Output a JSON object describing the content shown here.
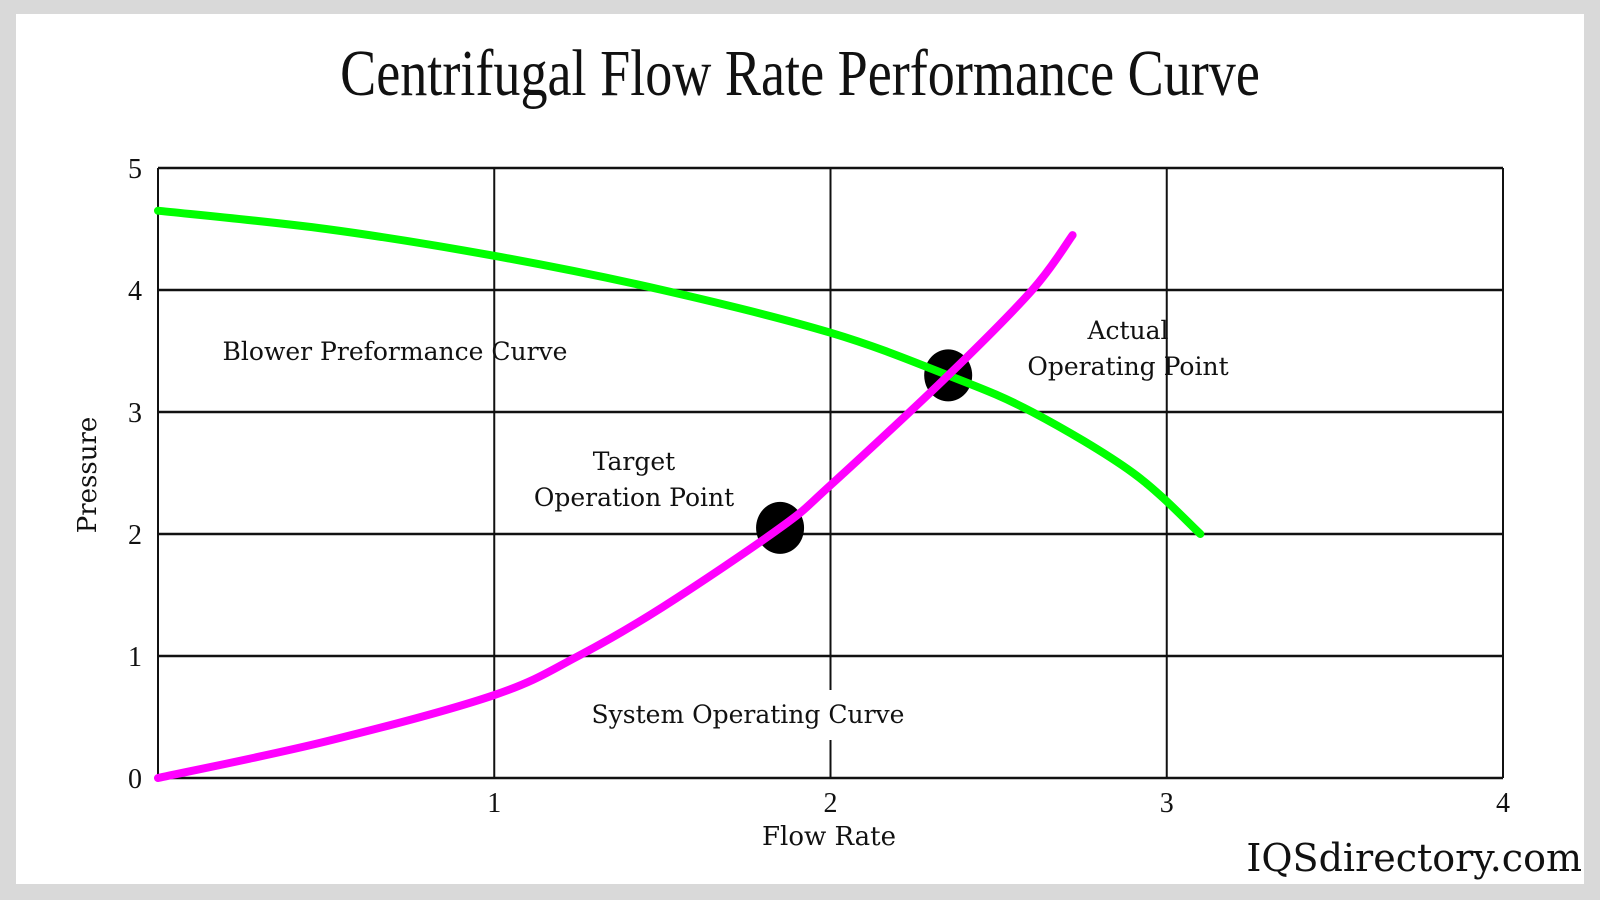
{
  "chart_data": {
    "type": "line",
    "title": "Centrifugal Flow Rate Performance Curve",
    "xlabel": "Flow Rate",
    "ylabel": "Pressure",
    "xlim": [
      0,
      4
    ],
    "ylim": [
      0,
      5
    ],
    "xticks": [
      "1",
      "2",
      "3",
      "4"
    ],
    "yticks": [
      "0",
      "1",
      "2",
      "3",
      "4",
      "5"
    ],
    "grid": true,
    "series": [
      {
        "name": "Blower Preformance Curve",
        "color": "#00ff00",
        "x": [
          0,
          0.5,
          1,
          1.5,
          2,
          2.35,
          2.6,
          2.9,
          3.1
        ],
        "y": [
          4.65,
          4.5,
          4.28,
          4.0,
          3.65,
          3.3,
          3.0,
          2.5,
          2.0
        ]
      },
      {
        "name": "System Operating Curve",
        "color": "#ff00ff",
        "x": [
          0,
          0.5,
          1,
          1.25,
          1.5,
          1.85,
          2,
          2.35,
          2.6,
          2.72
        ],
        "y": [
          0,
          0.3,
          0.68,
          1.0,
          1.4,
          2.05,
          2.4,
          3.3,
          4.0,
          4.45
        ]
      }
    ],
    "points": [
      {
        "name": "Target Operation Point",
        "x": 1.85,
        "y": 2.05
      },
      {
        "name": "Actual Operating Point",
        "x": 2.35,
        "y": 3.3
      }
    ],
    "annotations": {
      "blower": "Blower Preformance Curve",
      "target_1": "Target",
      "target_2": "Operation Point",
      "actual_1": "Actual",
      "actual_2": "Operating Point",
      "system": "System Operating Curve"
    }
  },
  "brand": "IQSdirectory.com"
}
